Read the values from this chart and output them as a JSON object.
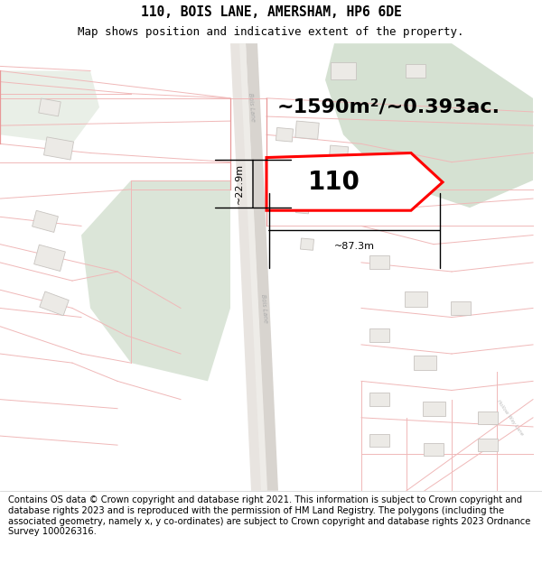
{
  "title_line1": "110, BOIS LANE, AMERSHAM, HP6 6DE",
  "title_line2": "Map shows position and indicative extent of the property.",
  "title_fontsize": 10.5,
  "subtitle_fontsize": 9,
  "footer_text": "Contains OS data © Crown copyright and database right 2021. This information is subject to Crown copyright and database rights 2023 and is reproduced with the permission of HM Land Registry. The polygons (including the associated geometry, namely x, y co-ordinates) are subject to Crown copyright and database rights 2023 Ordnance Survey 100026316.",
  "footer_fontsize": 7.2,
  "area_text": "~1590m²/~0.393ac.",
  "area_fontsize": 16,
  "label_110_fontsize": 24,
  "dim_h_text": "~87.3m",
  "dim_v_text": "~22.9m",
  "map_bg": "#f8f7f5",
  "property_color": "#ff0000",
  "property_fill": "#ffffff",
  "road_color": "#f0b8b8",
  "road_color_dark": "#e89898",
  "green_color": "#c8d8c4",
  "road_gray": "#d8d4d0",
  "road_centerline": "#c8c4c0"
}
